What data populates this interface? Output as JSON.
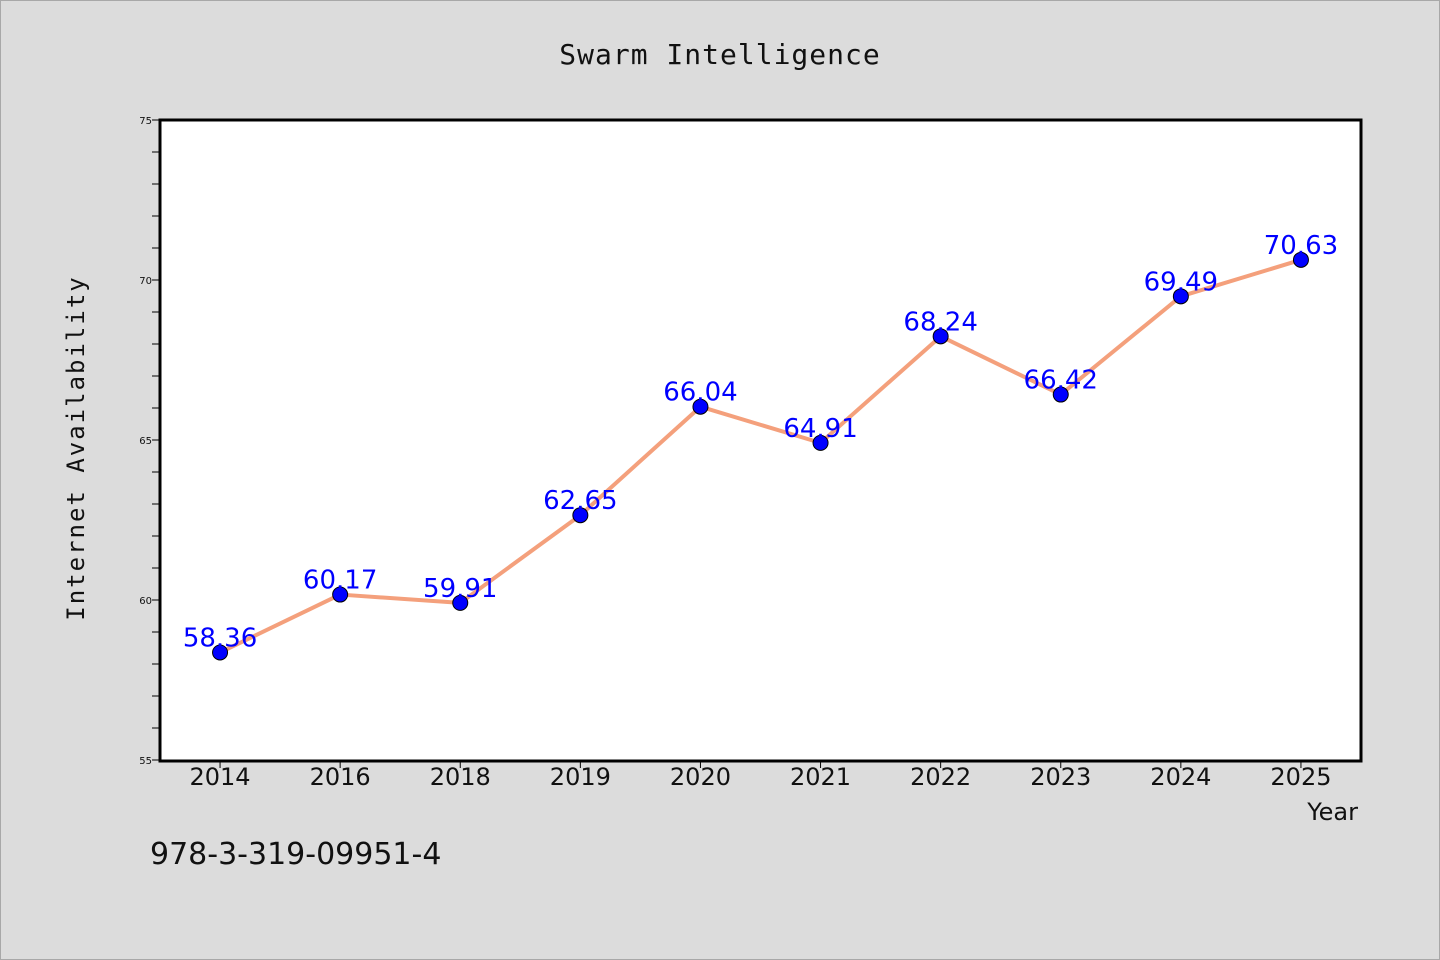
{
  "chart_data": {
    "type": "line",
    "title": "Swarm Intelligence",
    "xlabel": "Year",
    "ylabel": "Internet Availability",
    "categories": [
      "2014",
      "2016",
      "2018",
      "2019",
      "2020",
      "2021",
      "2022",
      "2023",
      "2024",
      "2025"
    ],
    "series": [
      {
        "values": [
          58.36,
          60.17,
          59.91,
          62.65,
          66.04,
          64.91,
          68.24,
          66.42,
          69.49,
          70.63
        ],
        "line_color": "#f4a07c",
        "marker_color": "#0000ff"
      }
    ],
    "data_labels": [
      "58.36",
      "60.17",
      "59.91",
      "62.65",
      "66.04",
      "64.91",
      "68.24",
      "66.42",
      "69.49",
      "70.63"
    ],
    "ylim": [
      55,
      75
    ],
    "yticks": [
      "55",
      "60",
      "65",
      "70",
      "75"
    ],
    "grid": false,
    "annotation": "978-3-319-09951-4",
    "colors": {
      "background": "#dcdcdc",
      "plot_background": "#ffffff",
      "label_color": "#0000ff"
    }
  }
}
